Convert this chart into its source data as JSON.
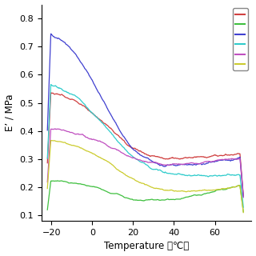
{
  "title": "",
  "xlabel": "Temperature （℃）",
  "ylabel": "E’ / MPa",
  "xlim": [
    -25,
    78
  ],
  "ylim": [
    0.08,
    0.85
  ],
  "yticks": [
    0.1,
    0.2,
    0.3,
    0.4,
    0.5,
    0.6,
    0.7,
    0.8
  ],
  "xticks": [
    -20,
    0,
    20,
    40,
    60
  ],
  "lines": [
    {
      "color": "#d04040",
      "label": ""
    },
    {
      "color": "#40c040",
      "label": ""
    },
    {
      "color": "#4040d0",
      "label": ""
    },
    {
      "color": "#30cccc",
      "label": ""
    },
    {
      "color": "#c050c0",
      "label": ""
    },
    {
      "color": "#cccc30",
      "label": ""
    }
  ],
  "background_color": "#ffffff"
}
